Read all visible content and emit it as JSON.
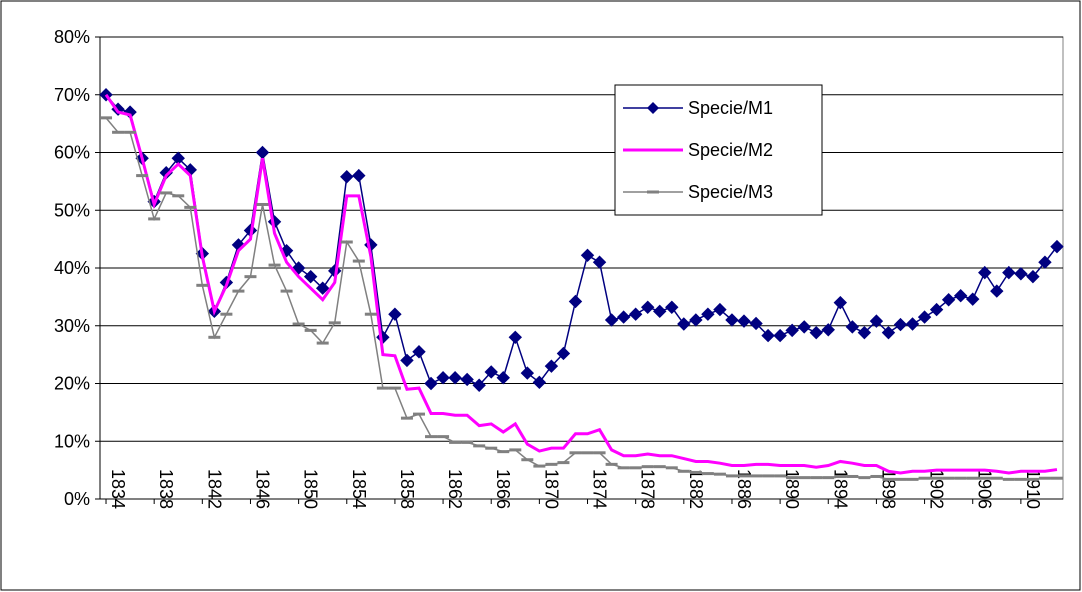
{
  "chart_data": {
    "type": "line",
    "categories": [
      "1834",
      null,
      null,
      null,
      "1838",
      null,
      null,
      null,
      "1842",
      null,
      null,
      null,
      "1846",
      null,
      null,
      null,
      "1850",
      null,
      null,
      null,
      "1854",
      null,
      null,
      null,
      "1858",
      null,
      null,
      null,
      "1862",
      null,
      null,
      null,
      "1866",
      null,
      null,
      null,
      "1870",
      null,
      null,
      null,
      "1874",
      null,
      null,
      null,
      "1878",
      null,
      null,
      null,
      "1882",
      null,
      null,
      null,
      "1886",
      null,
      null,
      null,
      "1890",
      null,
      null,
      null,
      "1894",
      null,
      null,
      null,
      "1898",
      null,
      null,
      null,
      "1902",
      null,
      null,
      null,
      "1906",
      null,
      null,
      null,
      "1910",
      null,
      null,
      null
    ],
    "ylim": [
      0,
      80
    ],
    "yticks": [
      {
        "value": 0,
        "label": "0%"
      },
      {
        "value": 10,
        "label": "10%"
      },
      {
        "value": 20,
        "label": "20%"
      },
      {
        "value": 30,
        "label": "30%"
      },
      {
        "value": 40,
        "label": "40%"
      },
      {
        "value": 50,
        "label": "50%"
      },
      {
        "value": 60,
        "label": "60%"
      },
      {
        "value": 70,
        "label": "70%"
      },
      {
        "value": 80,
        "label": "80%"
      }
    ],
    "grid": true,
    "series": [
      {
        "name": "Specie/M1",
        "color": "#000080",
        "marker": "diamond",
        "values": [
          70,
          67.5,
          67,
          59,
          51.5,
          56.5,
          59,
          57,
          42.5,
          32.5,
          37.5,
          44,
          46.5,
          60,
          48,
          43,
          40,
          38.5,
          36.5,
          39.5,
          55.8,
          56,
          44,
          28,
          32,
          24,
          25.5,
          20,
          21,
          21,
          20.7,
          19.7,
          22,
          21,
          28,
          21.8,
          20.2,
          23,
          25.2,
          34.2,
          42.2,
          41,
          31,
          31.5,
          32,
          33.2,
          32.5,
          33.2,
          30.3,
          31,
          32,
          32.8,
          31,
          30.8,
          30.4,
          28.3,
          28.3,
          29.2,
          29.8,
          28.8,
          29.3,
          34,
          29.8,
          28.8,
          30.8,
          28.8,
          30.2,
          30.3,
          31.5,
          32.8,
          34.5,
          35.2,
          34.6,
          39.2,
          36,
          39.2,
          39,
          38.5,
          41,
          43.7
        ]
      },
      {
        "name": "Specie/M2",
        "color": "#ff00ff",
        "marker": "none",
        "values": [
          70,
          67,
          66.5,
          59,
          51,
          56,
          58,
          56,
          42,
          32.5,
          37,
          43,
          45,
          59,
          46,
          41,
          38.5,
          36.5,
          34.5,
          37.5,
          52.5,
          52.5,
          42,
          25,
          24.8,
          19,
          19.2,
          14.8,
          14.8,
          14.5,
          14.5,
          12.7,
          13,
          11.6,
          13,
          9.5,
          8.3,
          8.8,
          8.8,
          11.3,
          11.3,
          12,
          8.5,
          7.5,
          7.5,
          7.8,
          7.5,
          7.5,
          7,
          6.5,
          6.5,
          6.2,
          5.8,
          5.8,
          6,
          6,
          5.8,
          5.8,
          5.8,
          5.5,
          5.8,
          6.5,
          6.2,
          5.8,
          5.8,
          4.8,
          4.5,
          4.8,
          4.8,
          5,
          5,
          5,
          5,
          5,
          4.8,
          4.5,
          4.8,
          4.8,
          4.8,
          5.1
        ]
      },
      {
        "name": "Specie/M3",
        "color": "#808080",
        "marker": "dash",
        "values": [
          66,
          63.5,
          63.5,
          56,
          48.5,
          53,
          52.5,
          50.5,
          37,
          28,
          32,
          36,
          38.5,
          51,
          40.5,
          36,
          30.3,
          29.2,
          27,
          30.5,
          44.5,
          41.2,
          32,
          19.2,
          19.2,
          14,
          14.7,
          10.8,
          10.8,
          9.8,
          9.8,
          9.2,
          8.8,
          8.2,
          8.5,
          6.8,
          5.7,
          6,
          6.3,
          8,
          8,
          8,
          6,
          5.4,
          5.4,
          5.6,
          5.6,
          5.4,
          4.8,
          4.6,
          4.4,
          4.3,
          4,
          4,
          4,
          4,
          4,
          3.7,
          3.7,
          3.7,
          3.7,
          3.9,
          3.9,
          3.7,
          3.9,
          3.4,
          3.4,
          3.4,
          3.6,
          3.6,
          3.6,
          3.6,
          3.6,
          3.6,
          3.6,
          3.4,
          3.4,
          3.4,
          3.6,
          3.6
        ]
      }
    ]
  }
}
